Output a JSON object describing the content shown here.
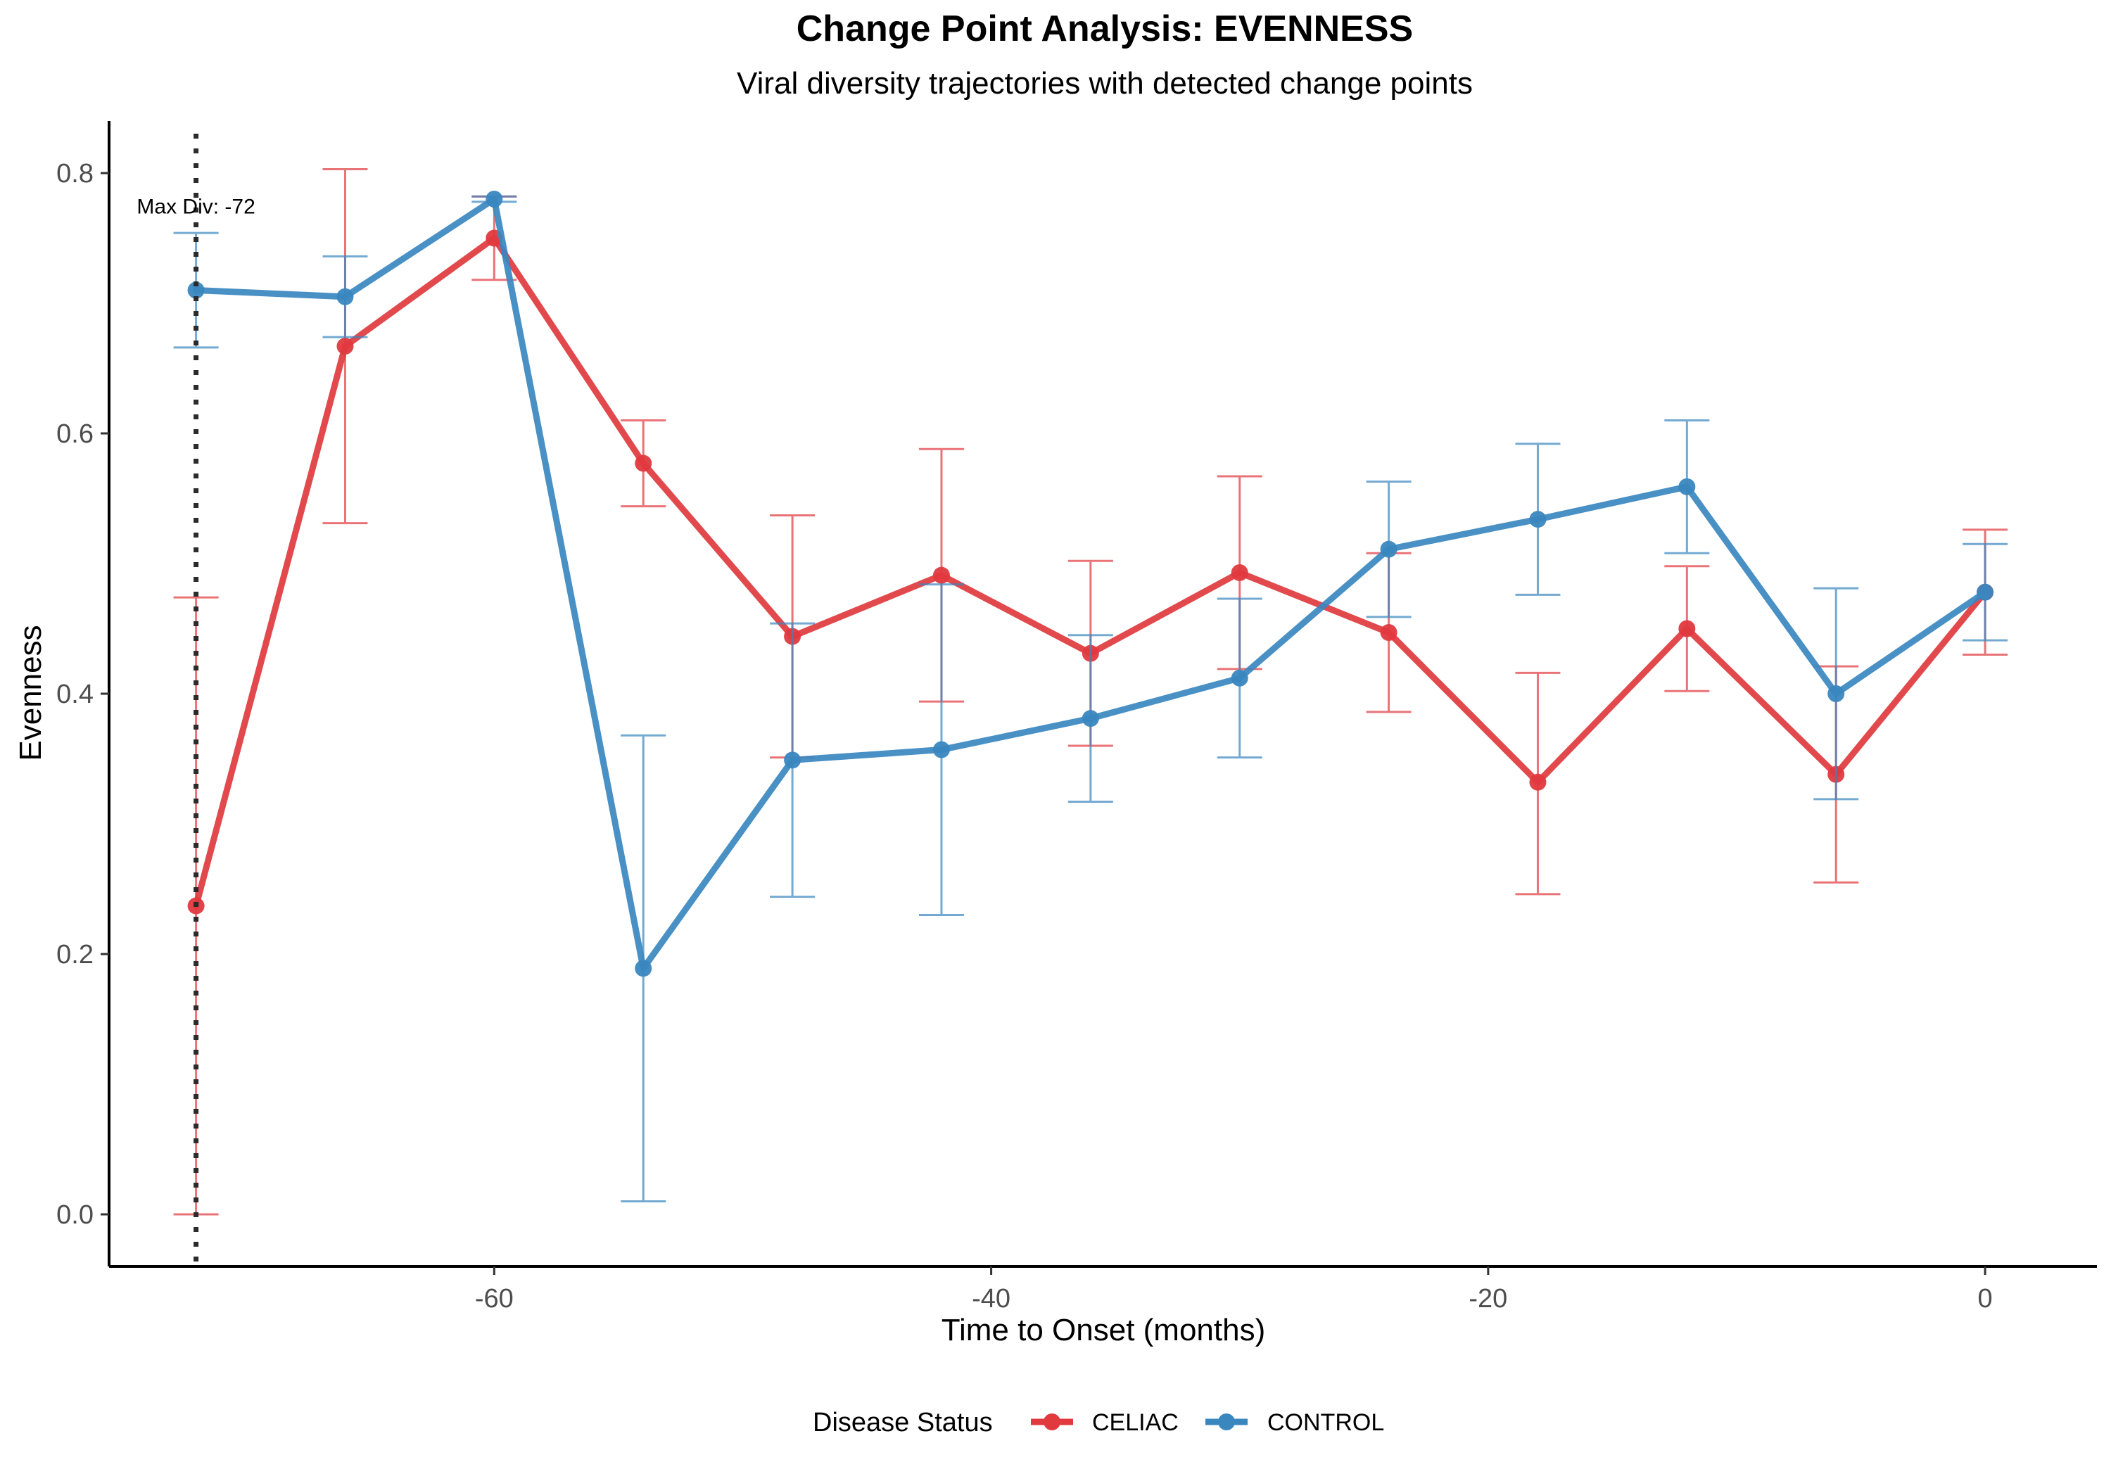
{
  "chart_data": {
    "type": "line",
    "title": "Change Point Analysis: EVENNESS",
    "subtitle": "Viral diversity trajectories with detected change points",
    "xlabel": "Time to Onset (months)",
    "ylabel": "Evenness",
    "xlim": [
      -75.5,
      4.5
    ],
    "ylim": [
      -0.04,
      0.84
    ],
    "x_ticks": [
      -60,
      -40,
      -20,
      0
    ],
    "x_tick_labels": [
      "-60",
      "-40",
      "-20",
      "0"
    ],
    "y_ticks": [
      0.0,
      0.2,
      0.4,
      0.6,
      0.8
    ],
    "y_tick_labels": [
      "0.0",
      "0.2",
      "0.4",
      "0.6",
      "0.8"
    ],
    "grid": false,
    "legend": {
      "title": "Disease Status",
      "position": "bottom"
    },
    "x": [
      -72,
      -66,
      -60,
      -54,
      -48,
      -42,
      -36,
      -30,
      -24,
      -18,
      -12,
      -6,
      0
    ],
    "series": [
      {
        "name": "CELIAC",
        "color": "#E0393E",
        "values": [
          0.237,
          0.667,
          0.75,
          0.577,
          0.444,
          0.491,
          0.431,
          0.493,
          0.447,
          0.332,
          0.45,
          0.338,
          0.478
        ],
        "lower": [
          0.0,
          0.531,
          0.718,
          0.544,
          0.351,
          0.394,
          0.36,
          0.419,
          0.386,
          0.246,
          0.402,
          0.255,
          0.43
        ],
        "upper": [
          0.474,
          0.803,
          0.782,
          0.61,
          0.537,
          0.588,
          0.502,
          0.567,
          0.508,
          0.416,
          0.498,
          0.421,
          0.526
        ]
      },
      {
        "name": "CONTROL",
        "color": "#3A87C0",
        "values": [
          0.71,
          0.705,
          0.78,
          0.189,
          0.349,
          0.357,
          0.381,
          0.412,
          0.511,
          0.534,
          0.559,
          0.4,
          0.478
        ],
        "lower": [
          0.666,
          0.674,
          0.778,
          0.01,
          0.244,
          0.23,
          0.317,
          0.351,
          0.459,
          0.476,
          0.508,
          0.319,
          0.441
        ],
        "upper": [
          0.754,
          0.736,
          0.782,
          0.368,
          0.454,
          0.484,
          0.445,
          0.473,
          0.563,
          0.592,
          0.61,
          0.481,
          0.515
        ]
      }
    ],
    "change_points": [
      {
        "x": -72,
        "label": "Max Div: -72"
      }
    ]
  }
}
